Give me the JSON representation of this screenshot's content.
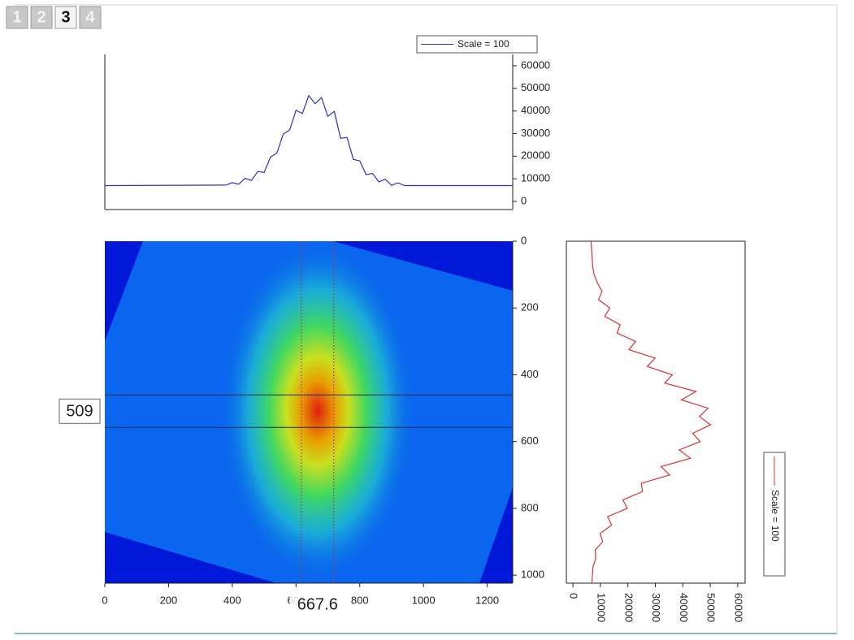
{
  "tabs": [
    "1",
    "2",
    "3",
    "4"
  ],
  "chart_data": [
    {
      "type": "line",
      "orientation": "horizontal",
      "x": [
        0,
        380,
        400,
        420,
        440,
        460,
        480,
        500,
        520,
        540,
        560,
        580,
        600,
        620,
        640,
        660,
        680,
        700,
        720,
        740,
        760,
        780,
        800,
        820,
        840,
        860,
        880,
        900,
        920,
        940,
        1280
      ],
      "series": [
        {
          "name": "Scale = 100",
          "color": "#2f2fd0",
          "values": [
            7000,
            7200,
            8300,
            7600,
            10200,
            9300,
            13200,
            12800,
            19600,
            21400,
            29800,
            31600,
            40300,
            38900,
            46800,
            43200,
            45900,
            37600,
            39800,
            27900,
            28300,
            18600,
            17900,
            11800,
            12400,
            8600,
            9800,
            7100,
            8200,
            7000,
            7000
          ]
        }
      ],
      "xlim": [
        0,
        1280
      ],
      "ylim": [
        -3600,
        65000
      ],
      "yticks": [
        0,
        10000,
        20000,
        30000,
        40000,
        50000,
        60000
      ]
    },
    {
      "type": "heatmap",
      "xlim": [
        0,
        1280
      ],
      "ylim": [
        0,
        1024
      ],
      "xticks": [
        0,
        200,
        400,
        600,
        800,
        1000,
        1200
      ],
      "yticks": [
        0,
        200,
        400,
        600,
        800,
        1000
      ],
      "cursor_x": 667.6,
      "cursor_y": 509
    },
    {
      "type": "line",
      "orientation": "vertical",
      "y": [
        0,
        25,
        50,
        75,
        100,
        125,
        150,
        175,
        200,
        225,
        250,
        275,
        300,
        325,
        350,
        375,
        400,
        425,
        450,
        475,
        500,
        525,
        550,
        575,
        600,
        625,
        650,
        675,
        700,
        725,
        750,
        775,
        800,
        825,
        850,
        875,
        900,
        925,
        950,
        975,
        1000,
        1024
      ],
      "series": [
        {
          "name": "Scale = 100",
          "color": "#e03030",
          "values": [
            6600,
            6800,
            7000,
            7200,
            7700,
            8900,
            10600,
            9300,
            13400,
            11600,
            17200,
            16100,
            22800,
            20400,
            29900,
            27100,
            36200,
            33400,
            44800,
            39500,
            49200,
            46100,
            50100,
            43600,
            46300,
            38700,
            42800,
            32100,
            35200,
            24900,
            25300,
            18200,
            19800,
            12600,
            14100,
            9900,
            10800,
            8100,
            8300,
            7300,
            7100,
            6900
          ]
        }
      ],
      "xlim": [
        -2400,
        62700
      ],
      "ylim": [
        0,
        1024
      ],
      "xticks": [
        0,
        10000,
        20000,
        30000,
        40000,
        50000,
        60000
      ]
    }
  ]
}
